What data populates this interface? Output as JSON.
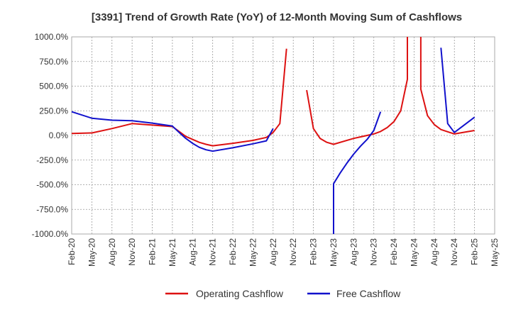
{
  "chart_data": {
    "type": "line",
    "title": "[3391]  Trend of Growth Rate (YoY) of 12-Month Moving Sum of Cashflows",
    "xlabel": "",
    "ylabel": "",
    "ylim": [
      -1000,
      1000
    ],
    "y_ticks": [
      "1000.0%",
      "750.0%",
      "500.0%",
      "250.0%",
      "0.0%",
      "-250.0%",
      "-500.0%",
      "-750.0%",
      "-1000.0%"
    ],
    "y_tick_values": [
      1000,
      750,
      500,
      250,
      0,
      -250,
      -500,
      -750,
      -1000
    ],
    "x_ticks": [
      "Feb-20",
      "May-20",
      "Aug-20",
      "Nov-20",
      "Feb-21",
      "May-21",
      "Aug-21",
      "Nov-21",
      "Feb-22",
      "May-22",
      "Aug-22",
      "Nov-22",
      "Feb-23",
      "May-23",
      "Aug-23",
      "Nov-23",
      "Feb-24",
      "May-24",
      "Aug-24",
      "Nov-24",
      "Feb-25",
      "May-25"
    ],
    "grid": true,
    "legend": "bottom",
    "series": [
      {
        "name": "Operating Cashflow",
        "color": "#dd1111",
        "points": [
          [
            "Feb-20",
            20
          ],
          [
            "May-20",
            25
          ],
          [
            "Aug-20",
            70
          ],
          [
            "Nov-20",
            120
          ],
          [
            "Feb-21",
            105
          ],
          [
            "May-21",
            90
          ],
          [
            "Jun-21",
            40
          ],
          [
            "Jul-21",
            -10
          ],
          [
            "Aug-21",
            -40
          ],
          [
            "Sep-21",
            -70
          ],
          [
            "Oct-21",
            -90
          ],
          [
            "Nov-21",
            -105
          ],
          [
            "Feb-22",
            -80
          ],
          [
            "May-22",
            -50
          ],
          [
            "Jul-22",
            -20
          ],
          [
            "Aug-22",
            30
          ],
          [
            "Sep-22",
            120
          ],
          [
            "Oct-22",
            880
          ],
          null,
          [
            "Jan-23",
            460
          ],
          [
            "Feb-23",
            70
          ],
          [
            "Mar-23",
            -30
          ],
          [
            "Apr-23",
            -70
          ],
          [
            "May-23",
            -90
          ],
          [
            "Aug-23",
            -30
          ],
          [
            "Nov-23",
            15
          ],
          [
            "Dec-23",
            40
          ],
          [
            "Jan-24",
            80
          ],
          [
            "Feb-24",
            140
          ],
          [
            "Mar-24",
            250
          ],
          [
            "Apr-24",
            570
          ],
          [
            "Apr-24",
            1000
          ],
          null,
          [
            "Jun-24",
            1000
          ],
          [
            "Jun-24",
            470
          ],
          [
            "Jul-24",
            200
          ],
          [
            "Aug-24",
            110
          ],
          [
            "Sep-24",
            60
          ],
          [
            "Nov-24",
            15
          ],
          [
            "Feb-25",
            50
          ]
        ]
      },
      {
        "name": "Free Cashflow",
        "color": "#1111cc",
        "points": [
          [
            "Feb-20",
            240
          ],
          [
            "May-20",
            175
          ],
          [
            "Aug-20",
            155
          ],
          [
            "Nov-20",
            150
          ],
          [
            "Feb-21",
            125
          ],
          [
            "May-21",
            95
          ],
          [
            "Jun-21",
            30
          ],
          [
            "Jul-21",
            -30
          ],
          [
            "Aug-21",
            -80
          ],
          [
            "Sep-21",
            -120
          ],
          [
            "Oct-21",
            -145
          ],
          [
            "Nov-21",
            -160
          ],
          [
            "Feb-22",
            -125
          ],
          [
            "May-22",
            -85
          ],
          [
            "Jul-22",
            -55
          ],
          [
            "Aug-22",
            70
          ],
          null,
          [
            "May-23",
            -1000
          ],
          [
            "May-23",
            -490
          ],
          [
            "Jun-23",
            -380
          ],
          [
            "Jul-23",
            -280
          ],
          [
            "Aug-23",
            -190
          ],
          [
            "Sep-23",
            -110
          ],
          [
            "Oct-23",
            -40
          ],
          [
            "Nov-23",
            50
          ],
          [
            "Dec-23",
            240
          ],
          null,
          [
            "Sep-24",
            890
          ],
          [
            "Oct-24",
            120
          ],
          [
            "Nov-24",
            30
          ],
          [
            "Feb-25",
            185
          ]
        ]
      }
    ]
  }
}
